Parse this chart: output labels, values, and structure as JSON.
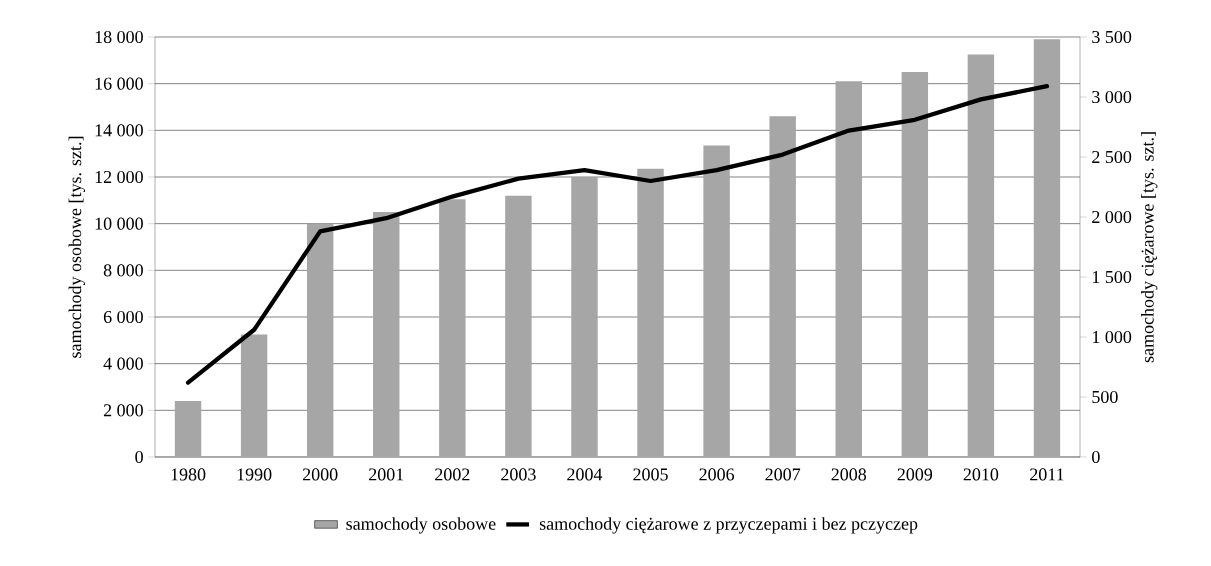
{
  "chart_data": {
    "type": "bar",
    "categories": [
      "1980",
      "1990",
      "2000",
      "2001",
      "2002",
      "2003",
      "2004",
      "2005",
      "2006",
      "2007",
      "2008",
      "2009",
      "2010",
      "2011"
    ],
    "series": [
      {
        "name": "samochody osobowe",
        "color": "#a6a6a6",
        "values": [
          2400,
          5250,
          10000,
          10500,
          11050,
          11200,
          12000,
          12350,
          13350,
          14600,
          16100,
          16500,
          17250,
          17900
        ]
      },
      {
        "name": "samochody ciężarowe z przyczepami i bez pczyczep",
        "type": "line",
        "axis": "y2",
        "color": "#000000",
        "values": [
          620,
          1060,
          1880,
          1990,
          2170,
          2320,
          2390,
          2300,
          2390,
          2520,
          2720,
          2810,
          2980,
          3090
        ]
      }
    ],
    "ylabel": "samochody osobowe [tys. szt.]",
    "y2label": "samochody ciężarowe [tys. szt.]",
    "ylim": [
      0,
      18000
    ],
    "yticks": [
      0,
      {
        "value": 2000,
        "label": "2 000"
      },
      {
        "value": 4000,
        "label": "4 000"
      },
      {
        "value": 6000,
        "label": "6 000"
      },
      {
        "value": 8000,
        "label": "8 000"
      },
      {
        "value": 10000,
        "label": "10 000"
      },
      {
        "value": 12000,
        "label": "12 000"
      },
      {
        "value": 14000,
        "label": "14 000"
      },
      {
        "value": 16000,
        "label": "16 000"
      },
      {
        "value": 18000,
        "label": "18 000"
      }
    ],
    "y2lim": [
      0,
      3500
    ],
    "y2ticks": [
      0,
      500,
      {
        "value": 1000,
        "label": "1 000"
      },
      {
        "value": 1500,
        "label": "1 500"
      },
      {
        "value": 2000,
        "label": "2 000"
      },
      {
        "value": 2500,
        "label": "2 500"
      },
      {
        "value": 3000,
        "label": "3 000"
      },
      {
        "value": 3500,
        "label": "3 500"
      }
    ],
    "grid": "y",
    "legend": "bottom"
  }
}
